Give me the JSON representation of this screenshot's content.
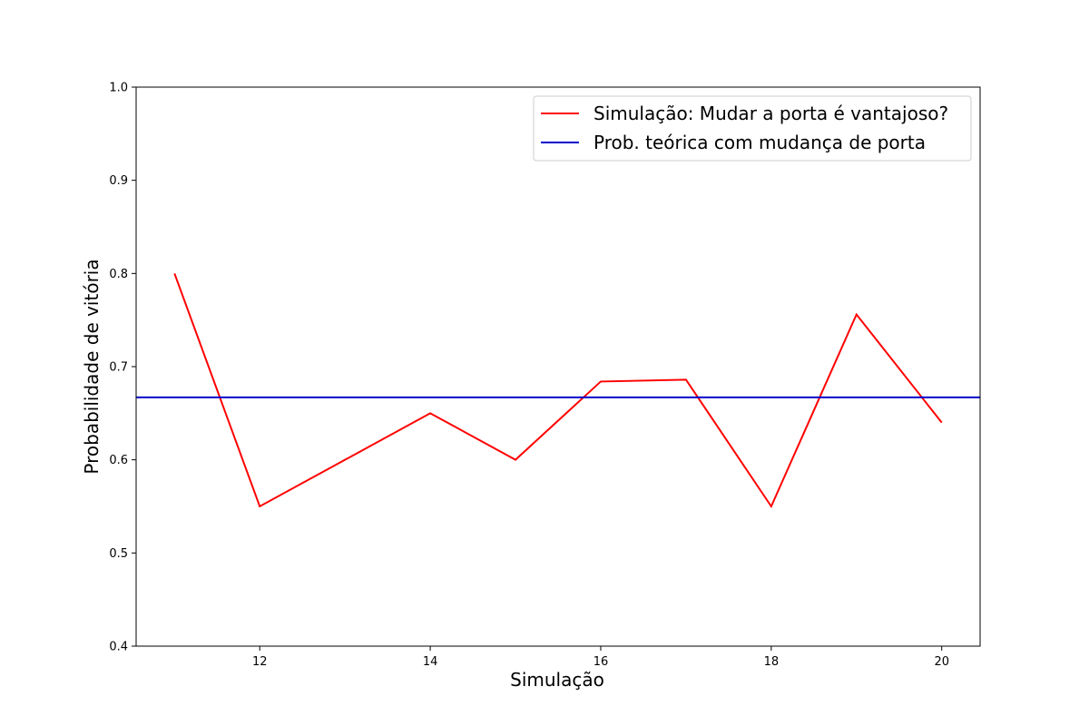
{
  "chart_data": {
    "type": "line",
    "xlabel": "Simulação",
    "ylabel": "Probabilidade de vitória",
    "xlim": [
      10.55,
      20.45
    ],
    "ylim": [
      0.4,
      1.0
    ],
    "xticks": [
      12,
      14,
      16,
      18,
      20
    ],
    "yticks": [
      0.4,
      0.5,
      0.6,
      0.7,
      0.8,
      0.9,
      1.0
    ],
    "ytick_labels": [
      "0.4",
      "0.5",
      "0.6",
      "0.7",
      "0.8",
      "0.9",
      "1.0"
    ],
    "grid": false,
    "legend_position": "top-right",
    "series": [
      {
        "name": "Simulação: Mudar a porta é vantajoso?",
        "color": "#ff0000",
        "x": [
          11,
          12,
          13,
          14,
          15,
          16,
          17,
          18,
          19,
          20
        ],
        "y": [
          0.8,
          0.55,
          0.6,
          0.65,
          0.6,
          0.684,
          0.686,
          0.55,
          0.756,
          0.64
        ]
      },
      {
        "name": "Prob. teórica com mudança de porta",
        "color": "#0000cc",
        "kind": "hline",
        "y": 0.667
      }
    ]
  }
}
